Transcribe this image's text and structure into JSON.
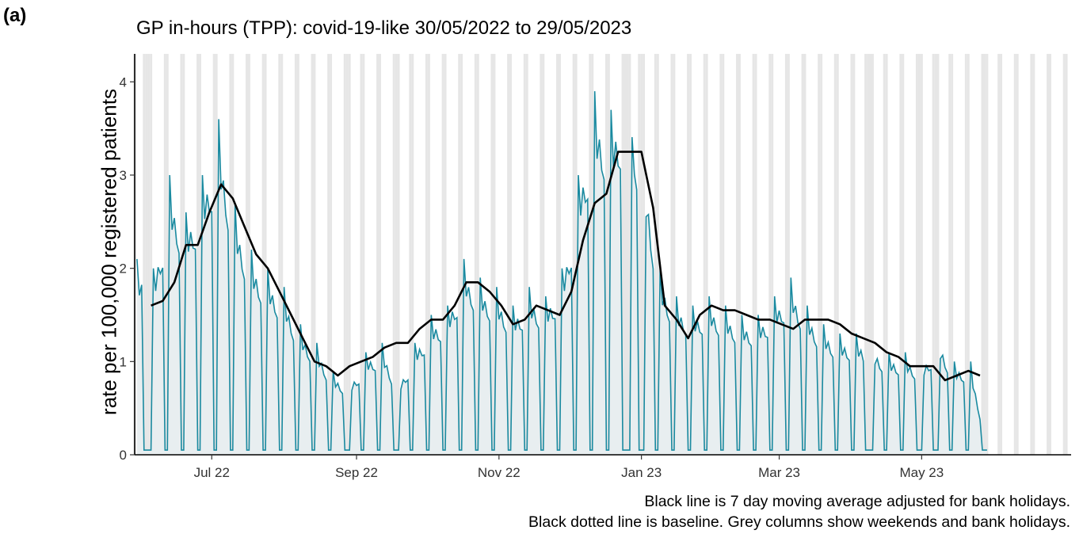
{
  "panel_label": "(a)",
  "chart_data": {
    "type": "line",
    "title": "GP in-hours (TPP): covid-19-like 30/05/2022 to 29/05/2023",
    "xlabel": "",
    "ylabel": "rate per 100,000 registered patients",
    "x_range": [
      "2022-05-29",
      "2023-07-04"
    ],
    "ylim": [
      0,
      4.3
    ],
    "y_ticks": [
      0,
      1,
      2,
      3,
      4
    ],
    "x_ticks": [
      {
        "date": "2022-07-01",
        "label": "Jul 22"
      },
      {
        "date": "2022-09-01",
        "label": "Sep 22"
      },
      {
        "date": "2022-11-01",
        "label": "Nov 22"
      },
      {
        "date": "2023-01-01",
        "label": "Jan 23"
      },
      {
        "date": "2023-03-01",
        "label": "Mar 23"
      },
      {
        "date": "2023-05-01",
        "label": "May 23"
      }
    ],
    "grid": false,
    "shaded_columns": "weekends and bank holidays",
    "bank_holidays": [
      "2022-06-02",
      "2022-06-03",
      "2022-08-29",
      "2022-09-19",
      "2022-12-26",
      "2022-12-27",
      "2023-01-02",
      "2023-04-07",
      "2023-04-10",
      "2023-05-01",
      "2023-05-08",
      "2023-05-29"
    ],
    "series": [
      {
        "role": "daily rate",
        "color": "#1a8aa0",
        "x": [
          "2022-05-30",
          "2022-06-06",
          "2022-06-13",
          "2022-06-20",
          "2022-06-27",
          "2022-07-04",
          "2022-07-11",
          "2022-07-18",
          "2022-07-25",
          "2022-08-01",
          "2022-08-08",
          "2022-08-15",
          "2022-08-22",
          "2022-08-29",
          "2022-09-05",
          "2022-09-12",
          "2022-09-19",
          "2022-09-26",
          "2022-10-03",
          "2022-10-10",
          "2022-10-17",
          "2022-10-24",
          "2022-10-31",
          "2022-11-07",
          "2022-11-14",
          "2022-11-21",
          "2022-11-28",
          "2022-12-05",
          "2022-12-12",
          "2022-12-19",
          "2022-12-26",
          "2023-01-02",
          "2023-01-09",
          "2023-01-16",
          "2023-01-23",
          "2023-01-30",
          "2023-02-06",
          "2023-02-13",
          "2023-02-20",
          "2023-02-27",
          "2023-03-06",
          "2023-03-13",
          "2023-03-20",
          "2023-03-27",
          "2023-04-03",
          "2023-04-10",
          "2023-04-17",
          "2023-04-24",
          "2023-05-01",
          "2023-05-08",
          "2023-05-15",
          "2023-05-22",
          "2023-05-29"
        ],
        "weekday_peak": [
          2.1,
          2.0,
          3.0,
          2.6,
          3.0,
          3.6,
          2.7,
          2.2,
          2.0,
          1.8,
          1.4,
          1.2,
          0.9,
          0.8,
          1.1,
          1.2,
          0.8,
          1.2,
          1.5,
          1.6,
          2.1,
          1.9,
          1.8,
          1.6,
          1.8,
          1.7,
          2.0,
          3.0,
          3.9,
          3.7,
          4.1,
          3.3,
          2.0,
          1.7,
          1.6,
          1.7,
          1.6,
          1.5,
          1.5,
          1.7,
          1.9,
          1.6,
          1.4,
          1.3,
          1.3,
          1.2,
          1.1,
          1.1,
          1.0,
          1.3,
          1.0,
          1.0,
          0.1
        ],
        "weekend_low": 0.05
      },
      {
        "role": "7 day moving average",
        "color": "#000000",
        "x": [
          "2022-06-05",
          "2022-06-10",
          "2022-06-15",
          "2022-06-20",
          "2022-06-25",
          "2022-06-30",
          "2022-07-05",
          "2022-07-10",
          "2022-07-15",
          "2022-07-20",
          "2022-07-25",
          "2022-07-30",
          "2022-08-04",
          "2022-08-09",
          "2022-08-14",
          "2022-08-19",
          "2022-08-24",
          "2022-08-29",
          "2022-09-03",
          "2022-09-08",
          "2022-09-13",
          "2022-09-18",
          "2022-09-23",
          "2022-09-28",
          "2022-10-03",
          "2022-10-08",
          "2022-10-13",
          "2022-10-18",
          "2022-10-23",
          "2022-10-28",
          "2022-11-02",
          "2022-11-07",
          "2022-11-12",
          "2022-11-17",
          "2022-11-22",
          "2022-11-27",
          "2022-12-02",
          "2022-12-07",
          "2022-12-12",
          "2022-12-17",
          "2022-12-22",
          "2022-12-27",
          "2023-01-01",
          "2023-01-06",
          "2023-01-11",
          "2023-01-16",
          "2023-01-21",
          "2023-01-26",
          "2023-01-31",
          "2023-02-05",
          "2023-02-10",
          "2023-02-15",
          "2023-02-20",
          "2023-02-25",
          "2023-03-02",
          "2023-03-07",
          "2023-03-12",
          "2023-03-17",
          "2023-03-22",
          "2023-03-27",
          "2023-04-01",
          "2023-04-06",
          "2023-04-11",
          "2023-04-16",
          "2023-04-21",
          "2023-04-26",
          "2023-05-01",
          "2023-05-06",
          "2023-05-11",
          "2023-05-16",
          "2023-05-21",
          "2023-05-26"
        ],
        "values": [
          1.6,
          1.65,
          1.85,
          2.25,
          2.25,
          2.6,
          2.9,
          2.75,
          2.45,
          2.15,
          2.0,
          1.75,
          1.5,
          1.25,
          1.0,
          0.95,
          0.85,
          0.95,
          1.0,
          1.05,
          1.15,
          1.2,
          1.2,
          1.35,
          1.45,
          1.45,
          1.6,
          1.85,
          1.85,
          1.75,
          1.6,
          1.4,
          1.45,
          1.6,
          1.55,
          1.5,
          1.75,
          2.3,
          2.7,
          2.8,
          3.25,
          3.25,
          3.25,
          2.65,
          1.6,
          1.45,
          1.25,
          1.5,
          1.6,
          1.55,
          1.55,
          1.5,
          1.45,
          1.45,
          1.4,
          1.35,
          1.45,
          1.45,
          1.45,
          1.4,
          1.3,
          1.25,
          1.2,
          1.1,
          1.05,
          0.95,
          0.95,
          0.95,
          0.8,
          0.85,
          0.9,
          0.85
        ]
      }
    ]
  },
  "caption": {
    "line1": "Black line is 7 day moving average adjusted for bank holidays.",
    "line2": "Black dotted line is baseline. Grey columns show weekends and bank holidays."
  }
}
